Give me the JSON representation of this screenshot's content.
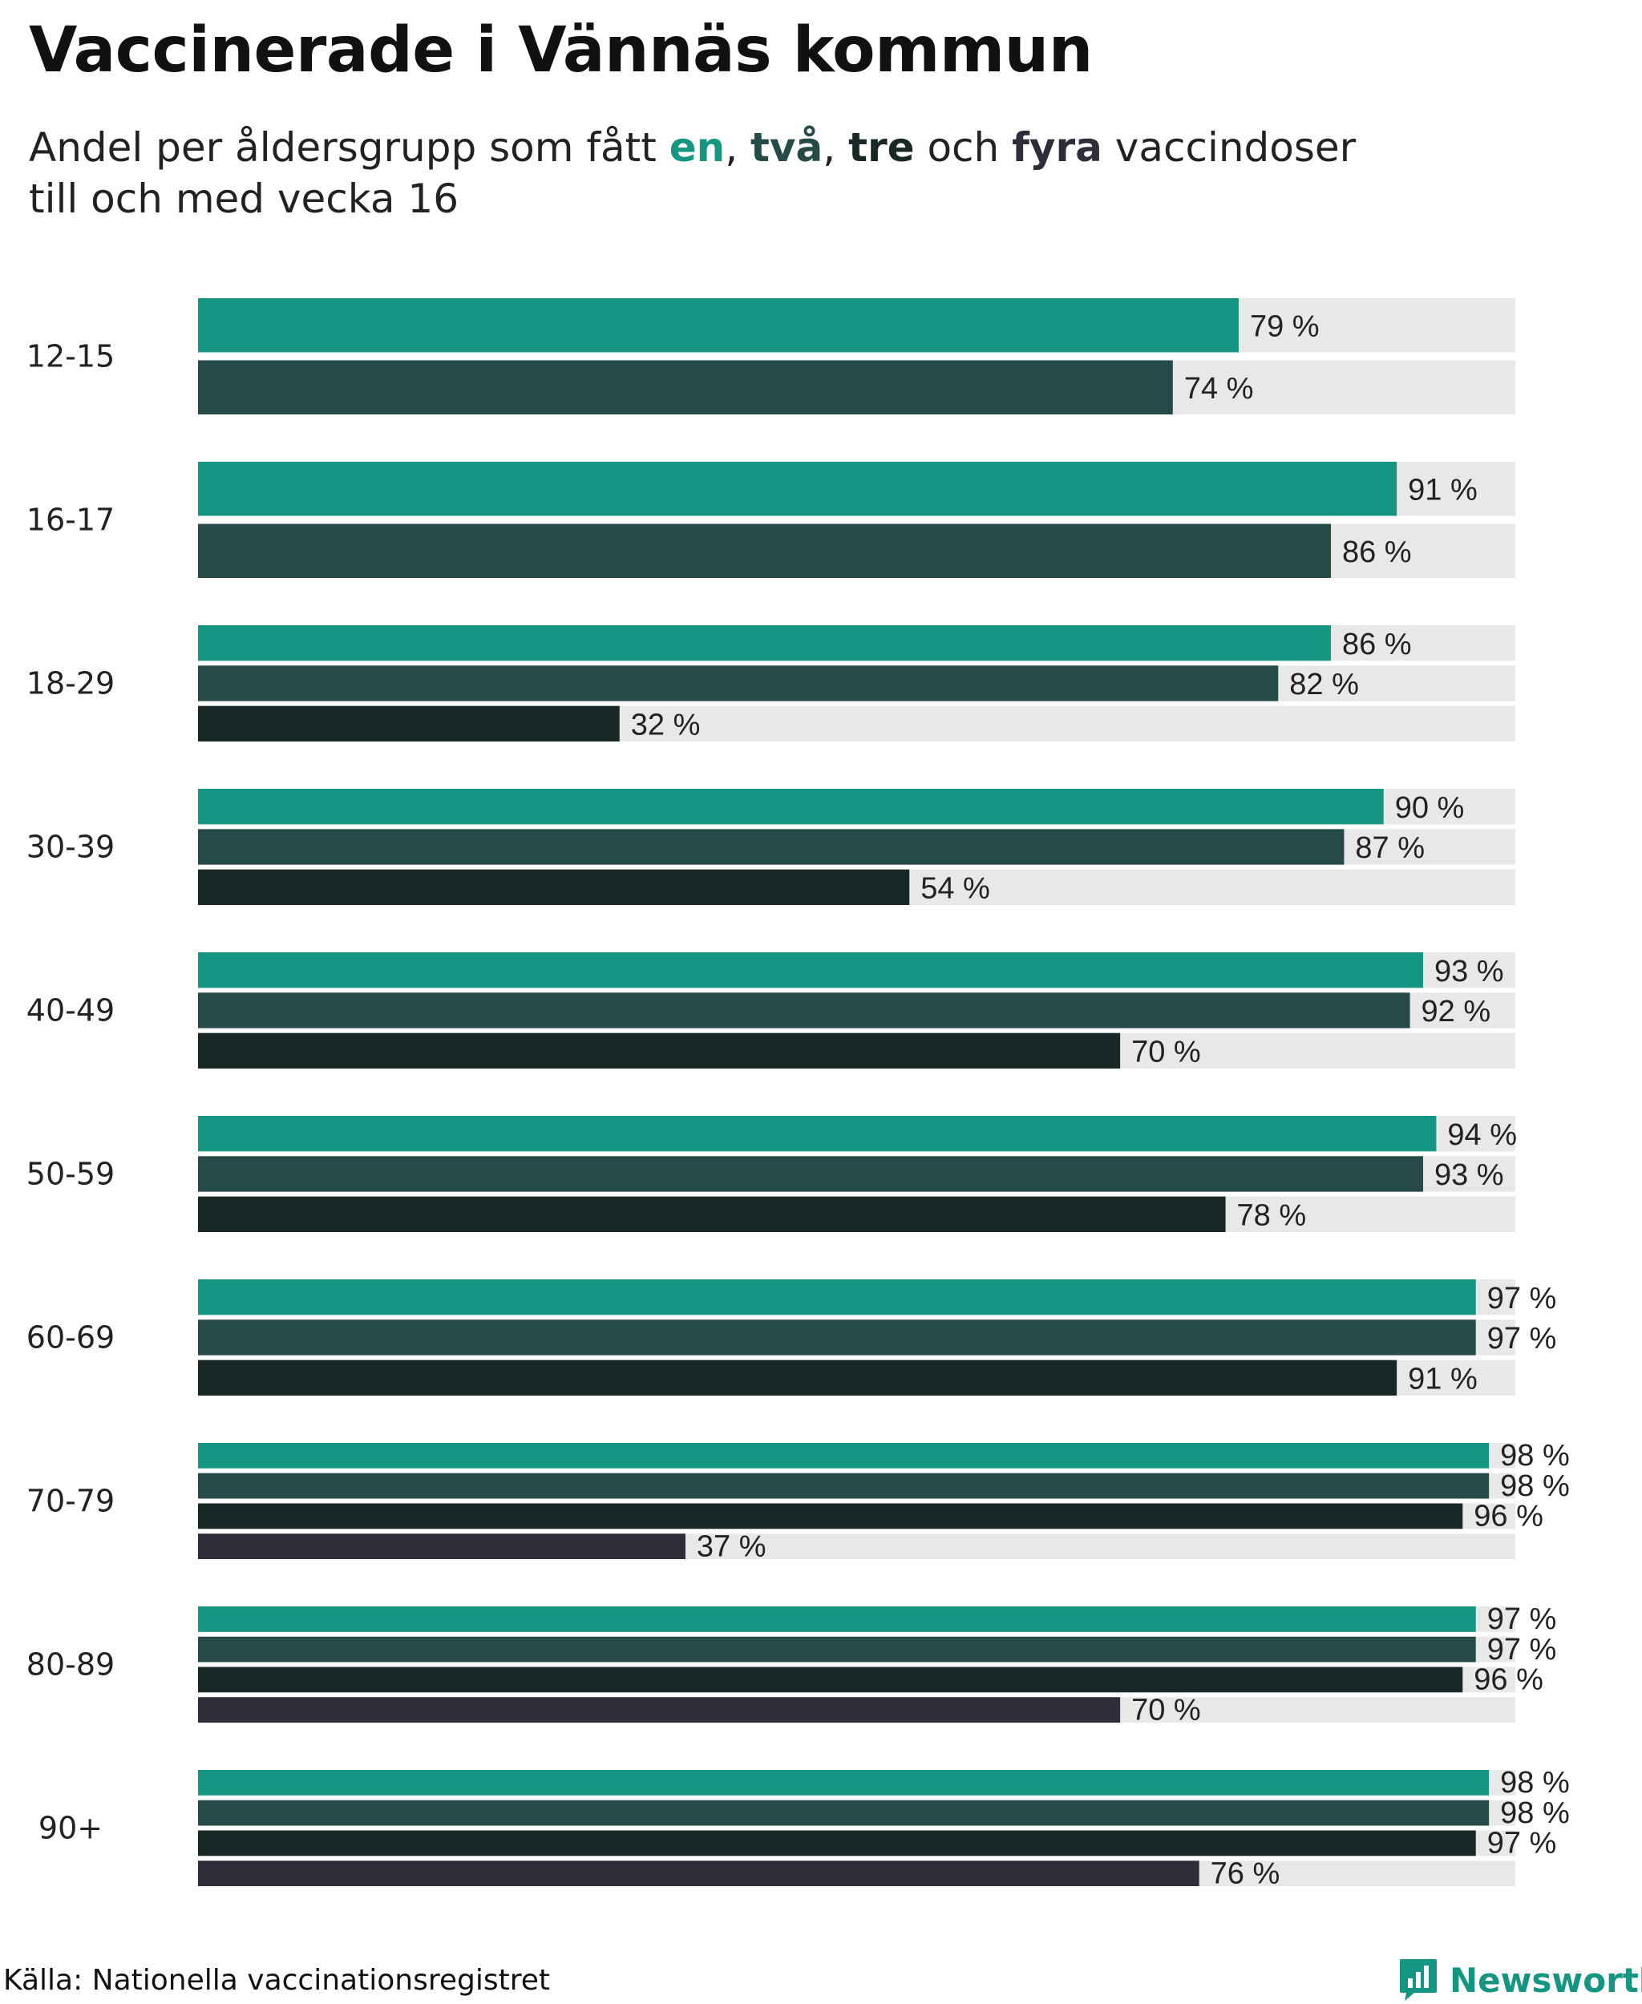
{
  "title": "Vaccinerade i Vännäs kommun",
  "subtitle": {
    "prefix": "Andel per åldersgrupp som fått ",
    "w1": "en",
    "sep1": ", ",
    "w2": "två",
    "sep2": ", ",
    "w3": "tre",
    "mid": " och ",
    "w4": "fyra",
    "suffix": " vaccindoser",
    "line2": "till och med vecka 16"
  },
  "colors": {
    "dose1": "#149683",
    "dose2": "#264a48",
    "dose3": "#182826",
    "dose4": "#2e2e3b",
    "track": "#e8e8e8"
  },
  "chart_data": {
    "type": "bar",
    "orientation": "horizontal",
    "unit": " %",
    "xlim": [
      0,
      100
    ],
    "series_names": [
      "en",
      "två",
      "tre",
      "fyra"
    ],
    "groups": [
      {
        "label": "12-15",
        "values": [
          79,
          74
        ]
      },
      {
        "label": "16-17",
        "values": [
          91,
          86
        ]
      },
      {
        "label": "18-29",
        "values": [
          86,
          82,
          32
        ]
      },
      {
        "label": "30-39",
        "values": [
          90,
          87,
          54
        ]
      },
      {
        "label": "40-49",
        "values": [
          93,
          92,
          70
        ]
      },
      {
        "label": "50-59",
        "values": [
          94,
          93,
          78
        ]
      },
      {
        "label": "60-69",
        "values": [
          97,
          97,
          91
        ]
      },
      {
        "label": "70-79",
        "values": [
          98,
          98,
          96,
          37
        ]
      },
      {
        "label": "80-89",
        "values": [
          97,
          97,
          96,
          70
        ]
      },
      {
        "label": "90+",
        "values": [
          98,
          98,
          97,
          76
        ]
      }
    ]
  },
  "source": "Källa: Nationella vaccinationsregistret",
  "brand": "Newsworthy",
  "brand_icon": "newsworthy-logo-icon"
}
